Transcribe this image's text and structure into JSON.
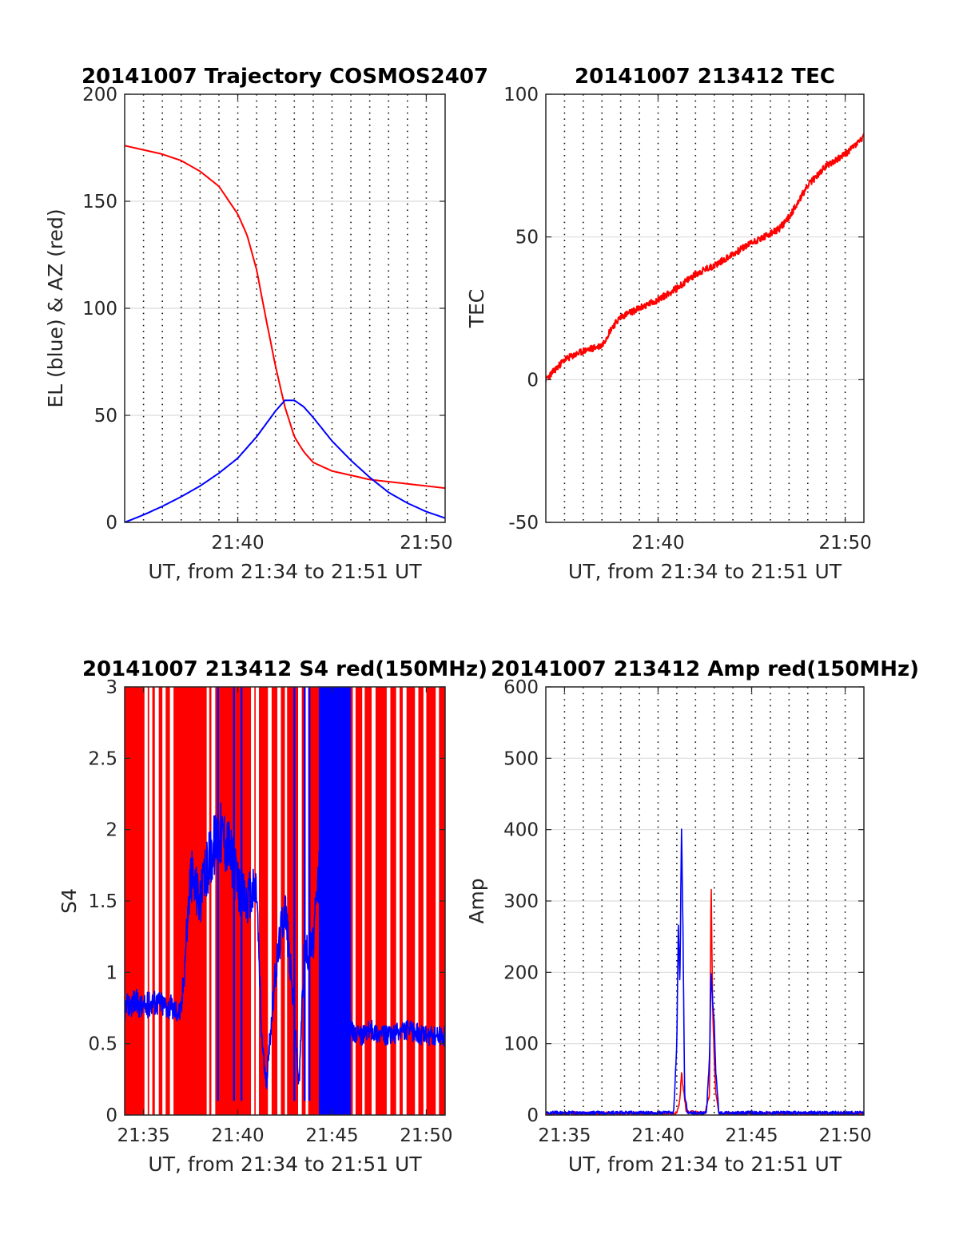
{
  "colors": {
    "az": "#ff0000",
    "el": "#0000ff",
    "tec": "#ff0000",
    "red": "#ff0000",
    "blue": "#0000ff"
  },
  "chart_data": [
    {
      "type": "line",
      "title": "20141007 Trajectory COSMOS2407",
      "xlabel": "UT, from 21:34 to 21:51 UT",
      "ylabel": "EL (blue) & AZ (red)",
      "xlim": [
        "21:34",
        "21:51"
      ],
      "ylim": [
        0,
        200
      ],
      "xticks": [
        "21:40",
        "21:50"
      ],
      "yticks": [
        0,
        50,
        100,
        150,
        200
      ],
      "grid": true,
      "series": [
        {
          "name": "AZ (red)",
          "color": "#ff0000",
          "x": [
            "21:34",
            "21:35",
            "21:36",
            "21:37",
            "21:38",
            "21:39",
            "21:40",
            "21:40:30",
            "21:41",
            "21:41:30",
            "21:42",
            "21:42:30",
            "21:43",
            "21:43:30",
            "21:44",
            "21:44:30",
            "21:45",
            "21:46",
            "21:47",
            "21:48",
            "21:49",
            "21:50",
            "21:51"
          ],
          "y": [
            176,
            174,
            172,
            169,
            164,
            157,
            144,
            134,
            118,
            95,
            73,
            54,
            40,
            33,
            28,
            26,
            24,
            22,
            20,
            19,
            18,
            17,
            16
          ]
        },
        {
          "name": "EL (blue)",
          "color": "#0000ff",
          "x": [
            "21:34",
            "21:35",
            "21:36",
            "21:37",
            "21:38",
            "21:39",
            "21:40",
            "21:41",
            "21:42",
            "21:42:30",
            "21:43",
            "21:43:30",
            "21:44",
            "21:45",
            "21:46",
            "21:47",
            "21:48",
            "21:49",
            "21:50",
            "21:51"
          ],
          "y": [
            0,
            3.5,
            7.5,
            12,
            17,
            23,
            30,
            40,
            52,
            57,
            57,
            54,
            49,
            38,
            29,
            21,
            14,
            9,
            5,
            2
          ]
        }
      ]
    },
    {
      "type": "line",
      "title": "20141007 213412 TEC",
      "xlabel": "UT, from 21:34 to 21:51 UT",
      "ylabel": "TEC",
      "xlim": [
        "21:34",
        "21:51"
      ],
      "ylim": [
        -50,
        100
      ],
      "xticks": [
        "21:40",
        "21:50"
      ],
      "yticks": [
        -50,
        0,
        50,
        100
      ],
      "grid": true,
      "series": [
        {
          "name": "TEC",
          "color": "#ff0000",
          "x": [
            "21:34",
            "21:35",
            "21:36",
            "21:37",
            "21:37:30",
            "21:38",
            "21:39",
            "21:40",
            "21:41",
            "21:42",
            "21:43",
            "21:44",
            "21:45",
            "21:46",
            "21:46:30",
            "21:47",
            "21:48",
            "21:49",
            "21:50",
            "21:51"
          ],
          "y": [
            0,
            7,
            10,
            12,
            18,
            22,
            25,
            28,
            32,
            37,
            40,
            44,
            48,
            51,
            53,
            57,
            68,
            75,
            79,
            85
          ]
        }
      ]
    },
    {
      "type": "line",
      "title": "20141007 213412 S4 red(150MHz)",
      "xlabel": "UT, from 21:34 to 21:51 UT",
      "ylabel": "S4",
      "xlim": [
        "21:34",
        "21:51"
      ],
      "ylim": [
        0,
        3
      ],
      "xticks": [
        "21:35",
        "21:40",
        "21:45",
        "21:50"
      ],
      "yticks": [
        0,
        0.5,
        1,
        1.5,
        2,
        2.5,
        3
      ],
      "grid": true,
      "series": [
        {
          "name": "S4 red",
          "color": "#ff0000",
          "x": [
            "21:34",
            "21:37",
            "21:38",
            "21:40",
            "21:41",
            "21:42",
            "21:43",
            "21:44",
            "21:45",
            "21:46",
            "21:48",
            "21:51"
          ],
          "y": [
            3,
            3,
            3,
            3,
            3,
            3,
            3,
            3,
            3,
            3,
            3,
            3
          ]
        },
        {
          "name": "S4 blue",
          "color": "#0000ff",
          "x": [
            "21:34",
            "21:34:30",
            "21:35",
            "21:35:30",
            "21:36",
            "21:36:30",
            "21:37",
            "21:37:30",
            "21:38",
            "21:38:30",
            "21:39",
            "21:39:30",
            "21:40",
            "21:40:30",
            "21:41",
            "21:41:15",
            "21:41:30",
            "21:42",
            "21:42:30",
            "21:43",
            "21:43:15",
            "21:43:30",
            "21:44",
            "21:44:30",
            "21:45",
            "21:45:30",
            "21:46",
            "21:46:30",
            "21:47",
            "21:48",
            "21:49",
            "21:50",
            "21:51"
          ],
          "y": [
            0.75,
            0.8,
            0.75,
            0.8,
            0.78,
            0.75,
            0.72,
            1.7,
            1.5,
            1.8,
            2.0,
            1.9,
            1.6,
            1.5,
            1.6,
            0.6,
            0.2,
            1.0,
            1.5,
            0.7,
            0.2,
            1.1,
            1.2,
            2.0,
            3.0,
            3.0,
            0.6,
            0.55,
            0.6,
            0.55,
            0.6,
            0.55,
            0.55
          ]
        }
      ]
    },
    {
      "type": "line",
      "title": "20141007 213412 Amp red(150MHz)",
      "xlabel": "UT, from 21:34 to 21:51 UT",
      "ylabel": "Amp",
      "xlim": [
        "21:34",
        "21:51"
      ],
      "ylim": [
        0,
        600
      ],
      "xticks": [
        "21:35",
        "21:40",
        "21:45",
        "21:50"
      ],
      "yticks": [
        0,
        100,
        200,
        300,
        400,
        500,
        600
      ],
      "grid": true,
      "series": [
        {
          "name": "Amp red",
          "color": "#ff0000",
          "x": [
            "21:34",
            "21:41",
            "21:41:10",
            "21:41:15",
            "21:41:20",
            "21:41:30",
            "21:42:30",
            "21:42:45",
            "21:42:50",
            "21:42:55",
            "21:43",
            "21:43:05",
            "21:43:15",
            "21:51"
          ],
          "y": [
            2,
            2,
            20,
            60,
            40,
            5,
            2,
            30,
            330,
            150,
            80,
            30,
            2,
            2
          ]
        },
        {
          "name": "Amp blue",
          "color": "#0000ff",
          "x": [
            "21:34",
            "21:40:50",
            "21:41",
            "21:41:05",
            "21:41:10",
            "21:41:15",
            "21:41:20",
            "21:41:25",
            "21:41:35",
            "21:42:35",
            "21:42:45",
            "21:42:50",
            "21:42:55",
            "21:43",
            "21:43:05",
            "21:43:15",
            "21:51"
          ],
          "y": [
            3,
            3,
            100,
            265,
            180,
            408,
            250,
            30,
            3,
            3,
            80,
            200,
            160,
            130,
            60,
            3,
            3
          ]
        }
      ]
    }
  ]
}
